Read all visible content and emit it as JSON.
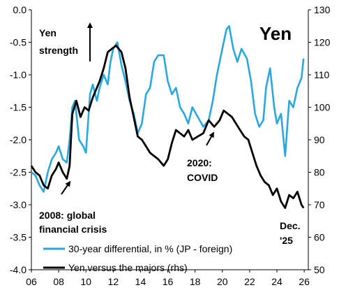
{
  "chart_data": {
    "type": "line",
    "title": "Yen",
    "x_ticks": [
      "06",
      "08",
      "10",
      "12",
      "14",
      "16",
      "18",
      "20",
      "22",
      "24",
      "26"
    ],
    "xlim": [
      2006,
      2026.3
    ],
    "ylim_left": [
      -4.0,
      0.0
    ],
    "left_ticks": [
      "0.0",
      "-0.5",
      "-1.0",
      "-1.5",
      "-2.0",
      "-2.5",
      "-3.0",
      "-3.5",
      "-4.0"
    ],
    "ylim_right": [
      50,
      130
    ],
    "right_ticks": [
      "130",
      "120",
      "110",
      "100",
      "90",
      "80",
      "70",
      "60",
      "50"
    ],
    "grid": false,
    "legend_position": "bottom-left",
    "series": [
      {
        "name": "30-year differential, in % (JP - foreign)",
        "axis": "left",
        "color": "#29a8e0",
        "x": [
          2006.0,
          2006.3,
          2006.6,
          2006.9,
          2007.2,
          2007.5,
          2007.8,
          2008.0,
          2008.3,
          2008.6,
          2008.8,
          2009.0,
          2009.2,
          2009.5,
          2009.8,
          2010.0,
          2010.3,
          2010.5,
          2010.8,
          2011.0,
          2011.3,
          2011.6,
          2011.8,
          2012.0,
          2012.3,
          2012.6,
          2012.9,
          2013.2,
          2013.5,
          2013.8,
          2014.1,
          2014.4,
          2014.7,
          2015.0,
          2015.3,
          2015.7,
          2016.0,
          2016.3,
          2016.6,
          2016.9,
          2017.2,
          2017.5,
          2017.8,
          2018.2,
          2018.6,
          2019.0,
          2019.3,
          2019.6,
          2019.9,
          2020.1,
          2020.3,
          2020.5,
          2020.8,
          2021.1,
          2021.4,
          2021.8,
          2022.1,
          2022.4,
          2022.7,
          2023.0,
          2023.2,
          2023.5,
          2023.8,
          2024.0,
          2024.3,
          2024.6,
          2024.9,
          2025.2,
          2025.5,
          2025.8,
          2025.95
        ],
        "values": [
          -2.5,
          -2.55,
          -2.7,
          -2.8,
          -2.5,
          -2.3,
          -2.2,
          -2.1,
          -2.3,
          -2.35,
          -2.0,
          -1.5,
          -1.4,
          -2.0,
          -2.1,
          -2.2,
          -1.3,
          -1.15,
          -1.4,
          -1.2,
          -1.0,
          -1.15,
          -0.8,
          -0.6,
          -0.5,
          -0.85,
          -1.1,
          -1.4,
          -1.6,
          -1.9,
          -1.75,
          -1.3,
          -1.2,
          -0.8,
          -0.7,
          -0.7,
          -1.1,
          -1.3,
          -1.2,
          -1.5,
          -1.6,
          -1.75,
          -1.5,
          -1.65,
          -1.8,
          -1.7,
          -1.4,
          -1.0,
          -0.7,
          -0.5,
          -0.3,
          -0.25,
          -0.6,
          -0.8,
          -0.6,
          -0.75,
          -1.1,
          -1.6,
          -1.8,
          -1.7,
          -1.2,
          -0.9,
          -1.5,
          -1.75,
          -1.6,
          -2.25,
          -1.4,
          -1.5,
          -1.2,
          -1.05,
          -0.75
        ]
      },
      {
        "name": "Yen versus the majors (rhs)",
        "axis": "right",
        "color": "#000000",
        "x": [
          2006.0,
          2006.3,
          2006.6,
          2006.9,
          2007.2,
          2007.5,
          2007.8,
          2008.0,
          2008.3,
          2008.6,
          2008.8,
          2009.0,
          2009.3,
          2009.6,
          2009.9,
          2010.2,
          2010.5,
          2010.8,
          2011.0,
          2011.3,
          2011.6,
          2011.9,
          2012.2,
          2012.6,
          2012.9,
          2013.2,
          2013.5,
          2013.8,
          2014.1,
          2014.4,
          2014.7,
          2015.0,
          2015.3,
          2015.7,
          2016.0,
          2016.3,
          2016.6,
          2016.9,
          2017.2,
          2017.5,
          2017.8,
          2018.2,
          2018.6,
          2019.0,
          2019.4,
          2019.8,
          2020.1,
          2020.4,
          2020.7,
          2021.0,
          2021.3,
          2021.6,
          2021.9,
          2022.2,
          2022.5,
          2022.8,
          2023.1,
          2023.4,
          2023.7,
          2024.0,
          2024.3,
          2024.6,
          2024.9,
          2025.2,
          2025.5,
          2025.8,
          2025.95
        ],
        "values": [
          82,
          80,
          79,
          76,
          75,
          79,
          81,
          83,
          80,
          78,
          82,
          98,
          102,
          97,
          100,
          99,
          103,
          106,
          108,
          112,
          117,
          118,
          119,
          117,
          112,
          103,
          97,
          91,
          90,
          88,
          86,
          85,
          84,
          82,
          84,
          89,
          93,
          92,
          91,
          93,
          90,
          91,
          92,
          96,
          94,
          96,
          99,
          98,
          97,
          95,
          93,
          91,
          90,
          86,
          82,
          79,
          77,
          76,
          73,
          75,
          71,
          69,
          73,
          72,
          74,
          70,
          69
        ]
      }
    ],
    "annotations": [
      {
        "lines": [
          "Yen",
          "strength"
        ]
      },
      {
        "lines": [
          "2008: global",
          "financial crisis"
        ]
      },
      {
        "lines": [
          "2020:",
          "COVID"
        ]
      },
      {
        "lines": [
          "Dec.",
          "'25"
        ]
      }
    ]
  }
}
